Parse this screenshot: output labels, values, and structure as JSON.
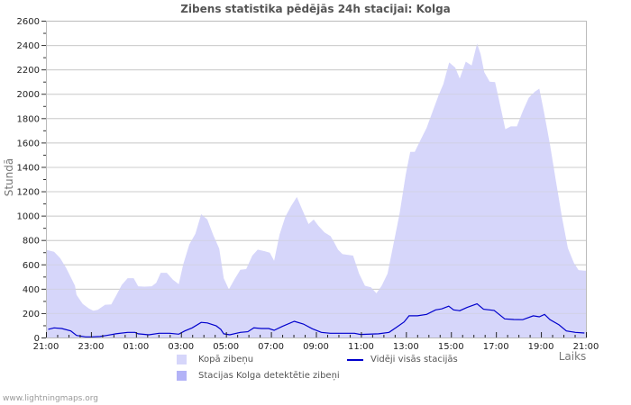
{
  "title": "Zibens statistika pēdējās 24h stacijai: Kolga",
  "footer": "www.lightningmaps.org",
  "colors": {
    "total_fill": "#d6d6fa",
    "station_fill": "#b3b3f7",
    "avg_line": "#0000cc",
    "grid": "#cccccc",
    "frame": "#bbbbbb"
  },
  "legend": {
    "total": "Kopā zibeņu",
    "station": "Stacijas Kolga detektētie zibeņi",
    "average": "Vidēji visās stacijās"
  },
  "chart_data": {
    "type": "area",
    "title": "Zibens statistika pēdējās 24h stacijai: Kolga",
    "xlabel": "Laiks",
    "ylabel": "Stundā",
    "ylim": [
      0,
      2600
    ],
    "yticks": [
      0,
      200,
      400,
      600,
      800,
      1000,
      1200,
      1400,
      1600,
      1800,
      2000,
      2200,
      2400,
      2600
    ],
    "x_unit": "hours since 21:00",
    "xlim": [
      0,
      24
    ],
    "xtick_labels": [
      "21:00",
      "23:00",
      "01:00",
      "03:00",
      "05:00",
      "07:00",
      "09:00",
      "11:00",
      "13:00",
      "15:00",
      "17:00",
      "19:00",
      "21:00"
    ],
    "grid": true,
    "legend_position": "bottom",
    "series": [
      {
        "name": "Kopā zibeņu",
        "kind": "area",
        "x": [
          0,
          0.1,
          0.36,
          0.63,
          0.89,
          1.09,
          1.29,
          1.36,
          1.63,
          1.9,
          2.1,
          2.3,
          2.63,
          2.9,
          3.1,
          3.37,
          3.63,
          3.9,
          4.1,
          4.37,
          4.7,
          4.9,
          5.1,
          5.37,
          5.64,
          5.9,
          6.1,
          6.37,
          6.64,
          6.9,
          7.17,
          7.44,
          7.7,
          7.9,
          8.13,
          8.37,
          8.64,
          8.9,
          9.17,
          9.41,
          9.7,
          9.95,
          10.14,
          10.38,
          10.64,
          10.9,
          11.15,
          11.38,
          11.67,
          11.9,
          12.1,
          12.38,
          12.65,
          12.78,
          12.98,
          13.18,
          13.65,
          13.92,
          14.18,
          14.45,
          14.69,
          14.92,
          15.18,
          15.45,
          15.72,
          15.99,
          16.19,
          16.39,
          16.65,
          16.92,
          17.19,
          17.46,
          17.66,
          17.92,
          18.19,
          18.39,
          18.66,
          18.92,
          19.16,
          19.32,
          19.48,
          19.72,
          19.96,
          20.19,
          20.42,
          20.66,
          20.93,
          21.19,
          21.46,
          21.73,
          21.93,
          22.13,
          22.4,
          22.66,
          22.93,
          23.2,
          23.47,
          23.67,
          23.93,
          24
        ],
        "values": [
          720,
          716,
          703,
          652,
          573,
          499,
          425,
          350,
          276,
          239,
          220,
          227,
          269,
          272,
          338,
          432,
          487,
          487,
          420,
          417,
          420,
          449,
          531,
          531,
          474,
          437,
          598,
          764,
          850,
          1012,
          968,
          838,
          730,
          487,
          395,
          474,
          556,
          561,
          672,
          721,
          709,
          696,
          630,
          844,
          993,
          1079,
          1153,
          1054,
          931,
          968,
          919,
          862,
          832,
          790,
          721,
          684,
          672,
          524,
          425,
          412,
          363,
          425,
          524,
          770,
          1017,
          1338,
          1523,
          1523,
          1622,
          1721,
          1857,
          1993,
          2079,
          2257,
          2215,
          2125,
          2264,
          2232,
          2412,
          2326,
          2178,
          2099,
          2096,
          1906,
          1709,
          1733,
          1733,
          1857,
          1968,
          2017,
          2042,
          1857,
          1585,
          1289,
          993,
          733,
          610,
          553,
          548,
          548
        ]
      },
      {
        "name": "Stacijas Kolga detektētie zibeņi",
        "kind": "area",
        "x": [
          0,
          24
        ],
        "values": [
          0,
          0
        ]
      },
      {
        "name": "Vidēji visās stacijās",
        "kind": "line",
        "x": [
          0.1,
          0.36,
          0.7,
          1.1,
          1.36,
          1.76,
          2.03,
          2.4,
          2.7,
          3.1,
          3.63,
          3.96,
          4.1,
          4.57,
          5.03,
          5.5,
          5.9,
          6.17,
          6.5,
          6.9,
          7.17,
          7.57,
          7.77,
          7.9,
          8.17,
          8.64,
          8.97,
          9.24,
          9.57,
          9.9,
          10.14,
          10.5,
          11.04,
          11.44,
          11.84,
          12.24,
          12.64,
          13.18,
          13.71,
          13.98,
          14.78,
          15.25,
          15.58,
          15.92,
          16.14,
          16.51,
          16.92,
          17.32,
          17.59,
          17.9,
          18.12,
          18.39,
          18.72,
          19.16,
          19.45,
          19.92,
          20.39,
          20.79,
          21.19,
          21.66,
          21.93,
          22.16,
          22.4,
          22.8,
          23.13,
          23.53,
          23.93
        ],
        "values": [
          67,
          79,
          74,
          54,
          17,
          5,
          5,
          8,
          17,
          30,
          42,
          42,
          30,
          22,
          35,
          35,
          27,
          54,
          79,
          124,
          120,
          95,
          67,
          30,
          22,
          42,
          47,
          79,
          74,
          74,
          59,
          91,
          133,
          111,
          72,
          42,
          35,
          35,
          35,
          25,
          30,
          42,
          84,
          128,
          178,
          178,
          190,
          227,
          235,
          257,
          227,
          220,
          247,
          276,
          232,
          222,
          153,
          148,
          146,
          178,
          170,
          190,
          146,
          104,
          54,
          42,
          37
        ]
      }
    ]
  }
}
